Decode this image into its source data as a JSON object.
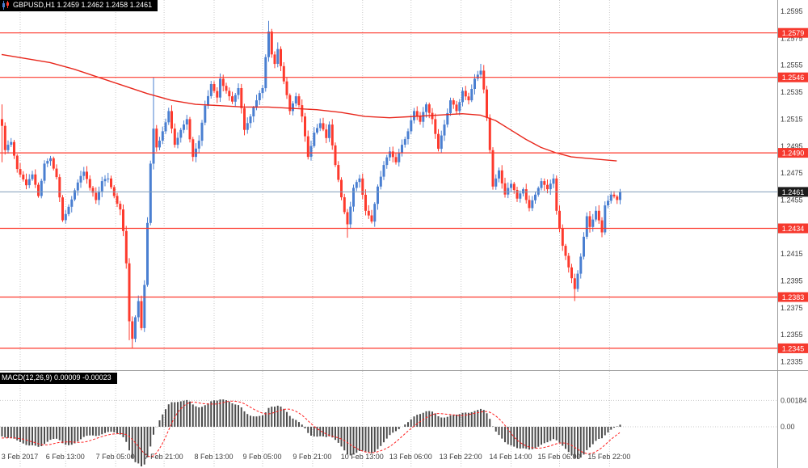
{
  "quote_bar": {
    "symbol_line": "GBPUSD,H1 1.2459 1.2462 1.2458 1.2461",
    "logo_icon": "platform-logo"
  },
  "colors": {
    "background": "#ffffff",
    "up_candle": "#4a7fd1",
    "down_candle": "#fd3a2d",
    "sr_line": "#fd3a2d",
    "sr_label_bg": "#f6392e",
    "sr_label_text": "#ffffff",
    "ma_line": "#e8271c",
    "price_line": "#7f9db9",
    "price_label_bg": "#1b1b1b",
    "price_label_text": "#ffffff",
    "macd_bar": "#4d4d4d",
    "macd_signal": "#ff1f1f",
    "grid": "#c9c9c9",
    "axis_text": "#3d3d3d",
    "separator": "#9a9a9a"
  },
  "chart_data": {
    "type": "candlestick",
    "symbol": "GBPUSD",
    "timeframe": "H1",
    "quote": {
      "open": 1.2459,
      "high": 1.2462,
      "low": 1.2458,
      "close": 1.2461
    },
    "current_price": {
      "price": 1.2461,
      "label": "1.2461"
    },
    "sr_levels": [
      {
        "price": 1.2579,
        "label": "1.2579"
      },
      {
        "price": 1.2546,
        "label": "1.2546"
      },
      {
        "price": 1.249,
        "label": "1.2490"
      },
      {
        "price": 1.2434,
        "label": "1.2434"
      },
      {
        "price": 1.2383,
        "label": "1.2383"
      },
      {
        "price": 1.2345,
        "label": "1.2345"
      }
    ],
    "y_axis": {
      "top_price": 1.2595,
      "tick_step": 0.002,
      "ticks": [
        "1.2595",
        "1.2575",
        "1.2555",
        "1.2535",
        "1.2515",
        "1.2495",
        "1.2475",
        "1.2455",
        "1.2435",
        "1.2415",
        "1.2395",
        "1.2375",
        "1.2355",
        "1.2335"
      ]
    },
    "x_axis": {
      "labels": [
        {
          "text": "3 Feb 2017",
          "i": 6
        },
        {
          "text": "6 Feb 13:00",
          "i": 21
        },
        {
          "text": "7 Feb 05:00",
          "i": 37.5
        },
        {
          "text": "7 Feb 21:00",
          "i": 53.5
        },
        {
          "text": "8 Feb 13:00",
          "i": 70
        },
        {
          "text": "9 Feb 05:00",
          "i": 86
        },
        {
          "text": "9 Feb 21:00",
          "i": 102.5
        },
        {
          "text": "10 Feb 13:00",
          "i": 119
        },
        {
          "text": "13 Feb 06:00",
          "i": 135
        },
        {
          "text": "13 Feb 22:00",
          "i": 151.5
        },
        {
          "text": "14 Feb 14:00",
          "i": 168
        },
        {
          "text": "15 Feb 06:00",
          "i": 184
        },
        {
          "text": "15 Feb 22:00",
          "i": 200.5
        }
      ]
    },
    "candles": {
      "count": 205,
      "first_open": 1.2515,
      "anchors": [
        [
          0,
          1.251
        ],
        [
          1,
          1.2492
        ],
        [
          3,
          1.2498
        ],
        [
          5,
          1.2478
        ],
        [
          8,
          1.2466
        ],
        [
          10,
          1.2474
        ],
        [
          12,
          1.2458
        ],
        [
          14,
          1.2482
        ],
        [
          16,
          1.2486
        ],
        [
          18,
          1.2472
        ],
        [
          20,
          1.244
        ],
        [
          22,
          1.245
        ],
        [
          25,
          1.2468
        ],
        [
          27,
          1.2476
        ],
        [
          29,
          1.2464
        ],
        [
          31,
          1.2455
        ],
        [
          33,
          1.2469
        ],
        [
          35,
          1.2471
        ],
        [
          37,
          1.2458
        ],
        [
          39,
          1.2448
        ],
        [
          40,
          1.2432
        ],
        [
          41,
          1.2408
        ],
        [
          42,
          1.2365
        ],
        [
          43,
          1.2352
        ],
        [
          44,
          1.2368
        ],
        [
          45,
          1.238
        ],
        [
          46,
          1.236
        ],
        [
          47,
          1.2392
        ],
        [
          48,
          1.2438
        ],
        [
          49,
          1.2482
        ],
        [
          50,
          1.2508
        ],
        [
          51,
          1.2494
        ],
        [
          53,
          1.2506
        ],
        [
          55,
          1.2521
        ],
        [
          57,
          1.2496
        ],
        [
          59,
          1.2507
        ],
        [
          61,
          1.2515
        ],
        [
          63,
          1.2487
        ],
        [
          65,
          1.2499
        ],
        [
          67,
          1.2525
        ],
        [
          69,
          1.2541
        ],
        [
          71,
          1.2531
        ],
        [
          72,
          1.2545
        ],
        [
          74,
          1.2536
        ],
        [
          76,
          1.2528
        ],
        [
          78,
          1.2538
        ],
        [
          80,
          1.2507
        ],
        [
          82,
          1.2517
        ],
        [
          84,
          1.2529
        ],
        [
          86,
          1.2538
        ],
        [
          87,
          1.2561
        ],
        [
          88,
          1.258
        ],
        [
          89,
          1.2563
        ],
        [
          90,
          1.2556
        ],
        [
          91,
          1.2567
        ],
        [
          93,
          1.2543
        ],
        [
          95,
          1.2521
        ],
        [
          97,
          1.2532
        ],
        [
          99,
          1.2517
        ],
        [
          101,
          1.2487
        ],
        [
          103,
          1.2505
        ],
        [
          105,
          1.2512
        ],
        [
          107,
          1.2501
        ],
        [
          108,
          1.2511
        ],
        [
          110,
          1.2481
        ],
        [
          112,
          1.2457
        ],
        [
          114,
          1.2437
        ],
        [
          116,
          1.2464
        ],
        [
          118,
          1.2471
        ],
        [
          120,
          1.2447
        ],
        [
          122,
          1.2439
        ],
        [
          124,
          1.2465
        ],
        [
          126,
          1.2481
        ],
        [
          128,
          1.2491
        ],
        [
          130,
          1.2483
        ],
        [
          132,
          1.2496
        ],
        [
          134,
          1.2506
        ],
        [
          136,
          1.2521
        ],
        [
          138,
          1.2513
        ],
        [
          140,
          1.2526
        ],
        [
          142,
          1.2515
        ],
        [
          144,
          1.2493
        ],
        [
          146,
          1.2511
        ],
        [
          148,
          1.2529
        ],
        [
          150,
          1.2521
        ],
        [
          152,
          1.2536
        ],
        [
          154,
          1.2529
        ],
        [
          156,
          1.2545
        ],
        [
          158,
          1.2551
        ],
        [
          159,
          1.2537
        ],
        [
          160,
          1.2516
        ],
        [
          161,
          1.2492
        ],
        [
          162,
          1.2465
        ],
        [
          164,
          1.2477
        ],
        [
          166,
          1.2459
        ],
        [
          168,
          1.2467
        ],
        [
          170,
          1.2456
        ],
        [
          172,
          1.2463
        ],
        [
          174,
          1.2449
        ],
        [
          176,
          1.2459
        ],
        [
          178,
          1.2469
        ],
        [
          180,
          1.2463
        ],
        [
          182,
          1.2471
        ],
        [
          183,
          1.2447
        ],
        [
          185,
          1.2421
        ],
        [
          187,
          1.2405
        ],
        [
          189,
          1.2389
        ],
        [
          191,
          1.2413
        ],
        [
          193,
          1.2443
        ],
        [
          194,
          1.2435
        ],
        [
          196,
          1.2447
        ],
        [
          198,
          1.2431
        ],
        [
          199,
          1.2451
        ],
        [
          201,
          1.2459
        ],
        [
          203,
          1.2455
        ],
        [
          204,
          1.2461
        ]
      ],
      "wick_overrides": {
        "0": {
          "high": 1.2526,
          "low": 1.2483
        },
        "42": {
          "low": 1.2351
        },
        "43": {
          "low": 1.2345
        },
        "50": {
          "high": 1.2546
        },
        "88": {
          "high": 1.2588
        },
        "91": {
          "high": 1.2572
        },
        "114": {
          "low": 1.2427
        },
        "158": {
          "high": 1.2556
        },
        "189": {
          "low": 1.238
        }
      }
    },
    "moving_average": {
      "points": [
        [
          0,
          1.2563
        ],
        [
          8,
          1.256
        ],
        [
          16,
          1.2557
        ],
        [
          24,
          1.2552
        ],
        [
          32,
          1.2546
        ],
        [
          40,
          1.254
        ],
        [
          48,
          1.2534
        ],
        [
          56,
          1.2529
        ],
        [
          64,
          1.2526
        ],
        [
          72,
          1.2525
        ],
        [
          80,
          1.2524
        ],
        [
          88,
          1.2524
        ],
        [
          96,
          1.2523
        ],
        [
          104,
          1.2522
        ],
        [
          112,
          1.252
        ],
        [
          120,
          1.2517
        ],
        [
          128,
          1.2516
        ],
        [
          136,
          1.2517
        ],
        [
          144,
          1.2518
        ],
        [
          152,
          1.2519
        ],
        [
          158,
          1.2518
        ],
        [
          163,
          1.2514
        ],
        [
          168,
          1.2507
        ],
        [
          173,
          1.25
        ],
        [
          178,
          1.2494
        ],
        [
          183,
          1.249
        ],
        [
          188,
          1.2487
        ],
        [
          193,
          1.2486
        ],
        [
          198,
          1.2485
        ],
        [
          203,
          1.2484
        ]
      ]
    },
    "macd": {
      "label": "MACD(12,26,9) 0.00009 -0.00023",
      "params": [
        12,
        26,
        9
      ],
      "macd_current": 9e-05,
      "signal_current": -0.00023,
      "ema_fast_seed_offset": -0.00025,
      "ema_slow_seed_offset": 0.0005,
      "initial_signal": -0.0008,
      "axis_labels": [
        {
          "text": "0.00184",
          "value": 0.00184
        },
        {
          "text": "0.00",
          "value": 0
        }
      ]
    }
  }
}
